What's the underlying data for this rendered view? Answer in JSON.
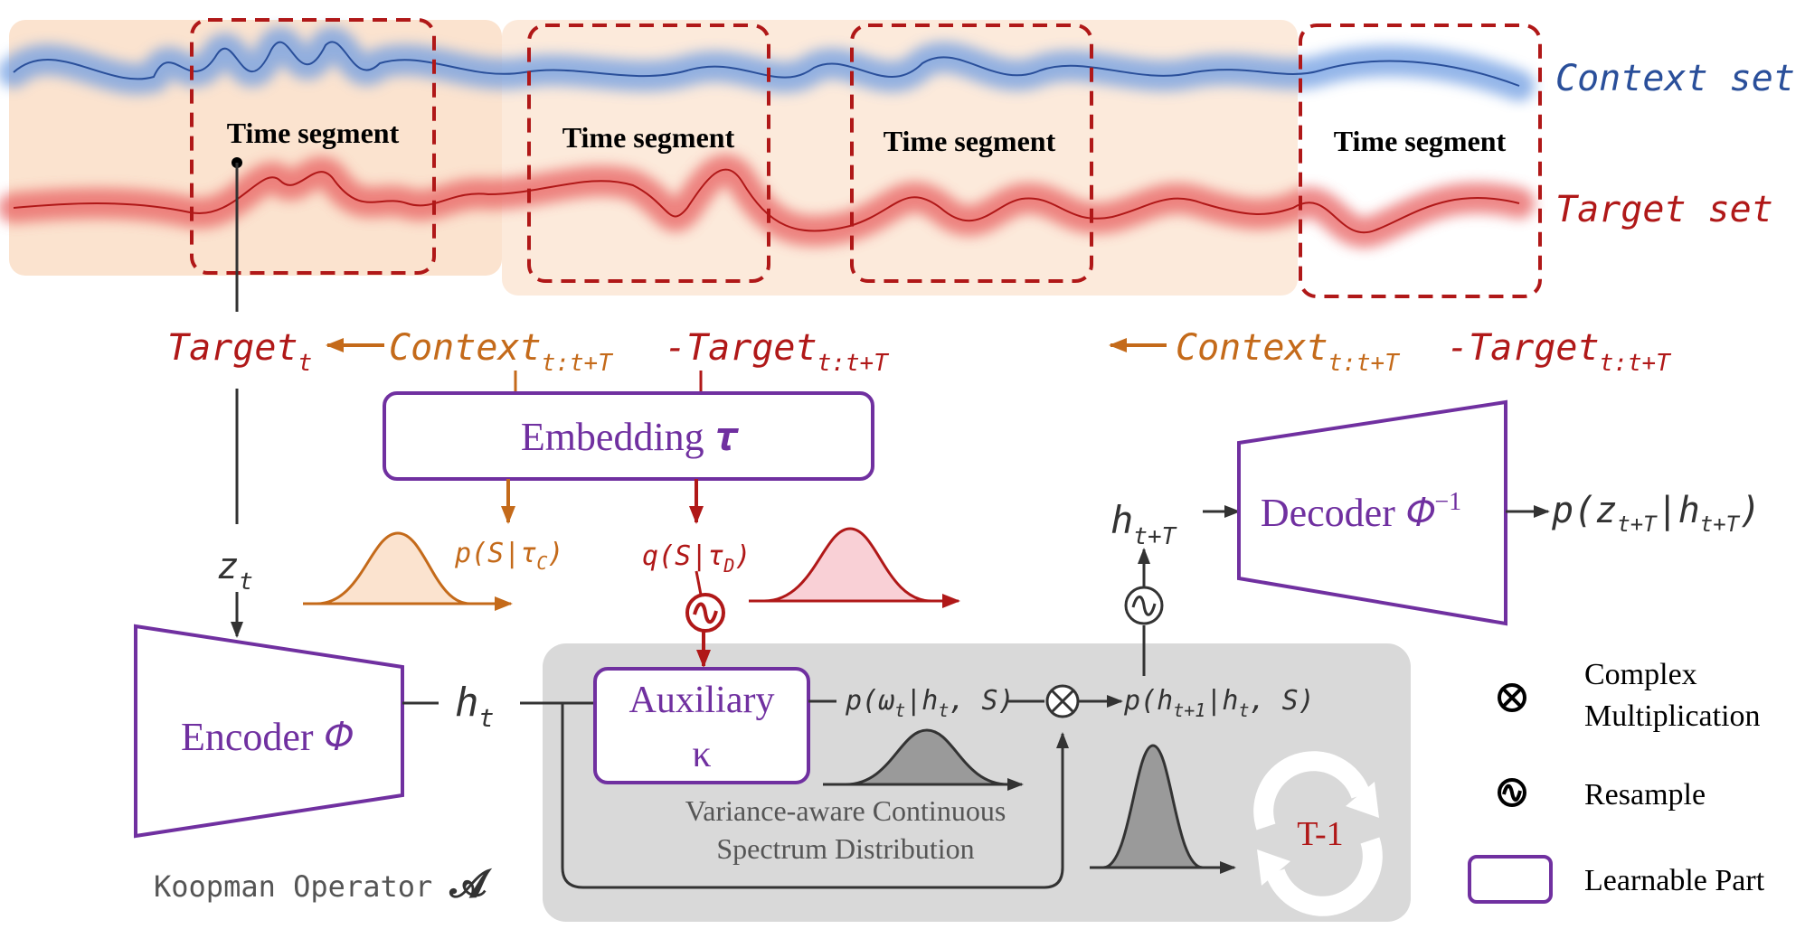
{
  "colors": {
    "blue": "#4a7fd4",
    "blue_dark": "#2a4f9a",
    "red": "#e05050",
    "red_dark": "#b01818",
    "orange": "#c46a1a",
    "purple": "#7030a0",
    "gray_dark": "#333333",
    "gray_box": "#d9d9d9",
    "peach": "#fbe3cf"
  },
  "top": {
    "context_label": "Context set",
    "target_label": "Target set",
    "segment_label": "Time segment"
  },
  "vars": {
    "target_t": {
      "main": "Target",
      "sub": "t"
    },
    "context_left": {
      "main": "Context",
      "sub": "t:t+T"
    },
    "target_left": {
      "main": "-Target",
      "sub": "t:t+T"
    },
    "context_right": {
      "main": "Context",
      "sub": "t:t+T"
    },
    "target_right": {
      "main": "-Target",
      "sub": "t:t+T"
    },
    "z_t": {
      "main": "z",
      "sub": "t"
    },
    "h_t": {
      "main": "h",
      "sub": "t"
    },
    "h_tT": {
      "main": "h",
      "sub": "t+T"
    },
    "p_S_tauC": "p(S|τ",
    "tauC_sub": "C",
    "q_S_tauD": "q(S|τ",
    "tauD_sub": "D",
    "p_omega": "p(ω",
    "p_omega_rest": "|h",
    "p_omega_end": ", S)",
    "p_h_next": "p(h",
    "p_h_next_sub": "t+1",
    "p_h_next_rest": "|h",
    "p_h_next_end": ", S)",
    "p_z_out": "p(z",
    "p_z_out_sub": "t+T",
    "p_z_out_rest": "|h",
    "p_z_out_end": ")"
  },
  "blocks": {
    "embedding": "Embedding 𝝉",
    "encoder": "Encoder 𝛷",
    "decoder": "Decoder 𝛷",
    "decoder_sup": "−1",
    "auxiliary_line1": "Auxiliary",
    "auxiliary_line2": "κ",
    "koopman": "Koopman Operator",
    "koopman_symbol": "𝓐",
    "variance_line1": "Variance-aware Continuous",
    "variance_line2": "Spectrum Distribution",
    "loop": "T-1"
  },
  "legend": {
    "complex_line1": "Complex",
    "complex_line2": "Multiplication",
    "resample": "Resample",
    "learnable": "Learnable Part"
  }
}
